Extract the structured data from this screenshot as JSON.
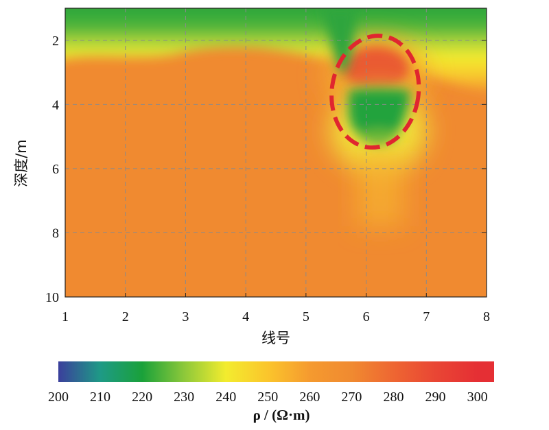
{
  "chart_data": {
    "type": "heatmap",
    "xlabel": "线号",
    "ylabel": "深度/m",
    "x_ticks": [
      "1",
      "2",
      "3",
      "4",
      "5",
      "6",
      "7",
      "8"
    ],
    "y_ticks": [
      "2",
      "4",
      "6",
      "8",
      "10"
    ],
    "xlim": [
      1,
      8
    ],
    "ylim": [
      1,
      10
    ],
    "y_inverted": true,
    "grid": true,
    "colorbar": {
      "label": "ρ / (Ω·m)",
      "ticks": [
        "200",
        "210",
        "220",
        "230",
        "240",
        "250",
        "260",
        "270",
        "280",
        "290",
        "300"
      ],
      "range": [
        200,
        304
      ],
      "placement": "bottom"
    },
    "colors": {
      "200": "#3b3f9c",
      "210": "#1e9a86",
      "220": "#1aa13a",
      "230": "#8cc83a",
      "240": "#f3ec2e",
      "250": "#fbc52c",
      "260": "#f59a2f",
      "270": "#f08a30",
      "280": "#ee6632",
      "290": "#e94634",
      "300": "#e52f34"
    },
    "background_value": 270,
    "features": [
      {
        "kind": "surface_layer_low",
        "depth_top": 1.0,
        "depth_bottom": 1.6,
        "value": 220
      },
      {
        "kind": "transition_band",
        "depth_top": 1.6,
        "depth_bottom": 3.0,
        "value": 245
      },
      {
        "kind": "low_anomaly",
        "x_center": 6.2,
        "depth_center": 4.6,
        "value": 218
      },
      {
        "kind": "high_anomaly",
        "x_center": 6.2,
        "depth_center": 3.0,
        "value": 282
      },
      {
        "kind": "surface_dip",
        "x_center": 5.8,
        "depth_center": 2.0,
        "value": 222
      }
    ],
    "annotations": [
      {
        "kind": "dashed_ellipse",
        "color": "#e0262f",
        "x_center": 6.15,
        "depth_center": 3.6,
        "x_radius": 0.72,
        "depth_radius": 1.75
      }
    ]
  }
}
